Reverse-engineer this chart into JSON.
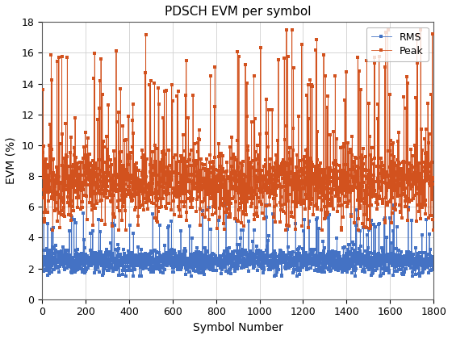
{
  "title": "PDSCH EVM per symbol",
  "xlabel": "Symbol Number",
  "ylabel": "EVM (%)",
  "xlim": [
    0,
    1800
  ],
  "ylim": [
    0,
    18
  ],
  "yticks": [
    0,
    2,
    4,
    6,
    8,
    10,
    12,
    14,
    16,
    18
  ],
  "xticks": [
    0,
    200,
    400,
    600,
    800,
    1000,
    1200,
    1400,
    1600,
    1800
  ],
  "rms_color": "#4472C4",
  "peak_color": "#D2521E",
  "n_points": 1800,
  "seed": 7,
  "line_width": 0.6,
  "marker_size": 2.5,
  "legend_labels": [
    "RMS",
    "Peak"
  ],
  "grid_color": "#d0d0d0",
  "background_color": "#ffffff",
  "title_fontsize": 11,
  "label_fontsize": 10,
  "tick_fontsize": 9
}
